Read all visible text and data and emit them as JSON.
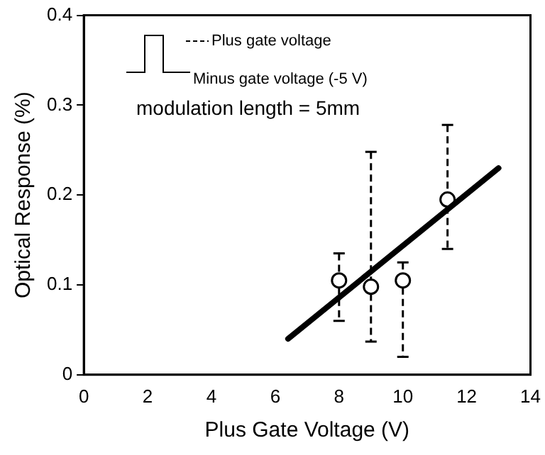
{
  "chart_data": {
    "type": "scatter",
    "xlabel": "Plus Gate Voltage (V)",
    "ylabel": "Optical Response (%)",
    "xlim": [
      0,
      14
    ],
    "xticks": [
      0,
      2,
      4,
      6,
      8,
      10,
      12,
      14
    ],
    "ylim": [
      0,
      0.4
    ],
    "yticks": [
      0,
      0.1,
      0.2,
      0.3,
      0.4
    ],
    "grid": false,
    "legend": false,
    "series": [
      {
        "type": "scatter",
        "color": "#000000",
        "marker": "circle",
        "x": [
          8,
          9,
          10,
          11.4
        ],
        "values": [
          0.105,
          0.098,
          0.105,
          0.195
        ],
        "errors": [
          [
            0.06,
            0.135
          ],
          [
            0.037,
            0.248
          ],
          [
            0.02,
            0.125
          ],
          [
            0.14,
            0.278
          ]
        ],
        "line_style": "dashed"
      },
      {
        "type": "line",
        "color": "#000000",
        "marker": "none",
        "x": [
          6.4,
          13
        ],
        "values": [
          0.04,
          0.23
        ]
      }
    ],
    "annotations": [
      "Plus gate voltage",
      "Minus gate voltage (-5 V)",
      "modulation length = 5mm"
    ]
  }
}
